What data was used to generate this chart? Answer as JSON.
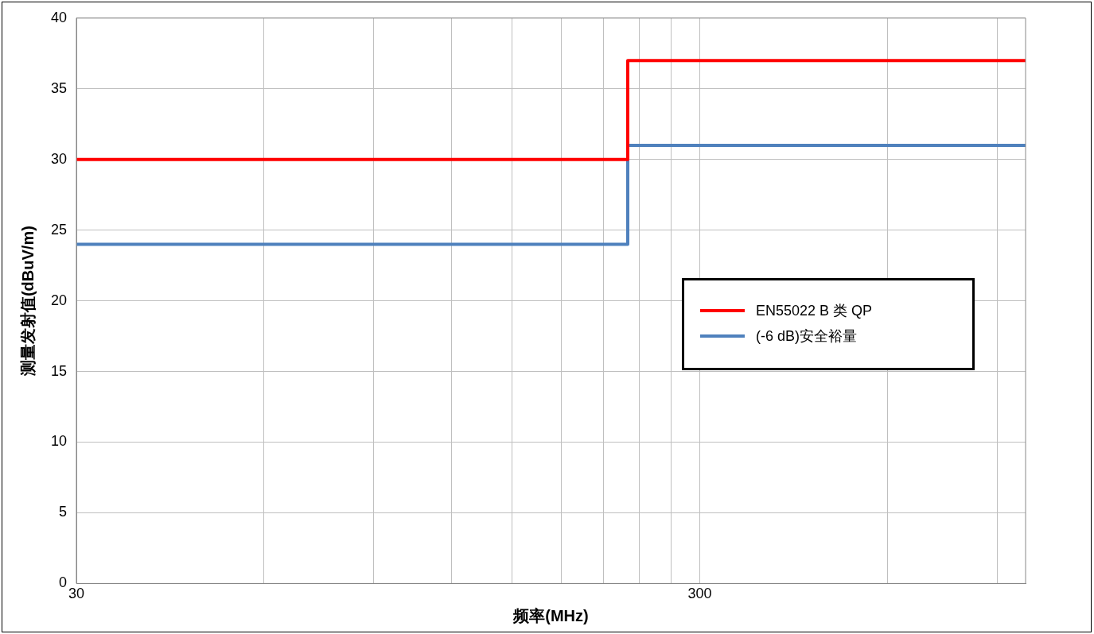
{
  "chart_data": {
    "type": "step",
    "xlabel": "频率(MHz)",
    "ylabel": "测量发射值(dBuV/m)",
    "log": "x",
    "xlim": [
      30,
      1000
    ],
    "xticks": [
      30,
      {
        "value": 60,
        "label": null
      },
      {
        "value": 90,
        "label": null
      },
      {
        "value": 120,
        "label": null
      },
      {
        "value": 150,
        "label": null
      },
      {
        "value": 180,
        "label": null
      },
      {
        "value": 210,
        "label": null
      },
      {
        "value": 240,
        "label": null
      },
      {
        "value": 270,
        "label": null
      },
      300,
      {
        "value": 600,
        "label": null
      },
      {
        "value": 900,
        "label": null
      }
    ],
    "ylim": [
      0,
      40
    ],
    "yticks": [
      0,
      5,
      10,
      15,
      20,
      25,
      30,
      35,
      40
    ],
    "grid": true,
    "legend": "right",
    "marker": "none",
    "line_style": "solid",
    "series": [
      {
        "name": "EN55022 B 类 QP",
        "color": "#ff0000",
        "x": [
          30,
          230,
          1000
        ],
        "values": [
          30,
          37,
          37
        ]
      },
      {
        "name": "(-6 dB)安全裕量",
        "color": "#4f81bd",
        "x": [
          30,
          230,
          1000
        ],
        "values": [
          24,
          31,
          31
        ]
      }
    ]
  }
}
